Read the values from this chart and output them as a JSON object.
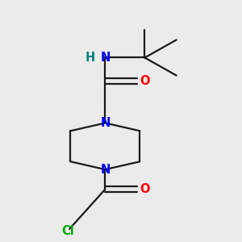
{
  "bg_color": "#ebebeb",
  "bond_color": "#1a1a1a",
  "N_color": "#0000ff",
  "O_color": "#ff0000",
  "Cl_color": "#00aa00",
  "H_color": "#008080",
  "line_width": 1.6,
  "font_size": 10.5,
  "xlim": [
    -0.1,
    1.1
  ],
  "ylim": [
    -0.05,
    1.05
  ]
}
